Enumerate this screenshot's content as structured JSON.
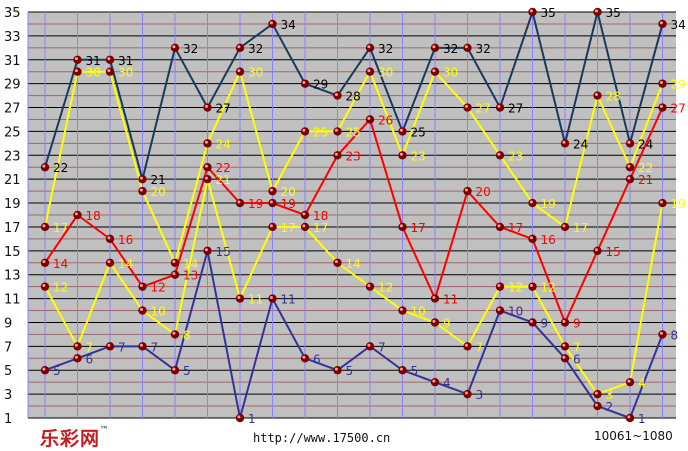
{
  "footer": {
    "brand": "乐彩网",
    "brand_mark": "™",
    "url": "http://www.17500.cn",
    "issue_range": "10061~1080"
  },
  "colors": {
    "background": "#ffffff",
    "plot_background": "#c0c0c0",
    "grid_major": "#000000",
    "grid_minor": "#9a6a6a",
    "grid_vertical": "#8a82ff"
  },
  "chart_data": {
    "type": "line",
    "x": [
      1,
      2,
      3,
      4,
      5,
      6,
      7,
      8,
      9,
      10,
      11,
      12,
      13,
      14,
      15,
      16,
      17,
      18,
      19,
      20
    ],
    "ylim": [
      1,
      35
    ],
    "yticks": [
      1,
      3,
      5,
      7,
      9,
      11,
      13,
      15,
      17,
      19,
      21,
      23,
      25,
      27,
      29,
      31,
      33,
      35
    ],
    "grid": true,
    "series": [
      {
        "color": "#1a3a5c",
        "label_color": "#000000",
        "values": [
          22,
          31,
          31,
          21,
          32,
          27,
          32,
          34,
          29,
          28,
          32,
          25,
          32,
          32,
          27,
          35,
          24,
          35,
          24,
          34
        ]
      },
      {
        "color": "#ffff00",
        "label_color": "#ffff00",
        "values": [
          17,
          30,
          30,
          20,
          14,
          24,
          30,
          20,
          25,
          25,
          30,
          23,
          30,
          27,
          23,
          19,
          17,
          28,
          22,
          29
        ]
      },
      {
        "color": "#ff0000",
        "label_color": "#ff0000",
        "values": [
          14,
          18,
          16,
          12,
          13,
          22,
          19,
          19,
          18,
          23,
          26,
          17,
          11,
          20,
          17,
          16,
          9,
          15,
          21,
          27
        ]
      },
      {
        "color": "#ffff00",
        "label_color": "#ffff00",
        "values": [
          12,
          7,
          14,
          10,
          8,
          21,
          11,
          17,
          17,
          14,
          12,
          10,
          9,
          7,
          12,
          12,
          7,
          3,
          4,
          19
        ]
      },
      {
        "color": "#333399",
        "label_color": "#333399",
        "values": [
          5,
          6,
          7,
          7,
          5,
          15,
          1,
          11,
          6,
          5,
          7,
          5,
          4,
          3,
          10,
          9,
          6,
          2,
          1,
          8
        ]
      }
    ]
  }
}
